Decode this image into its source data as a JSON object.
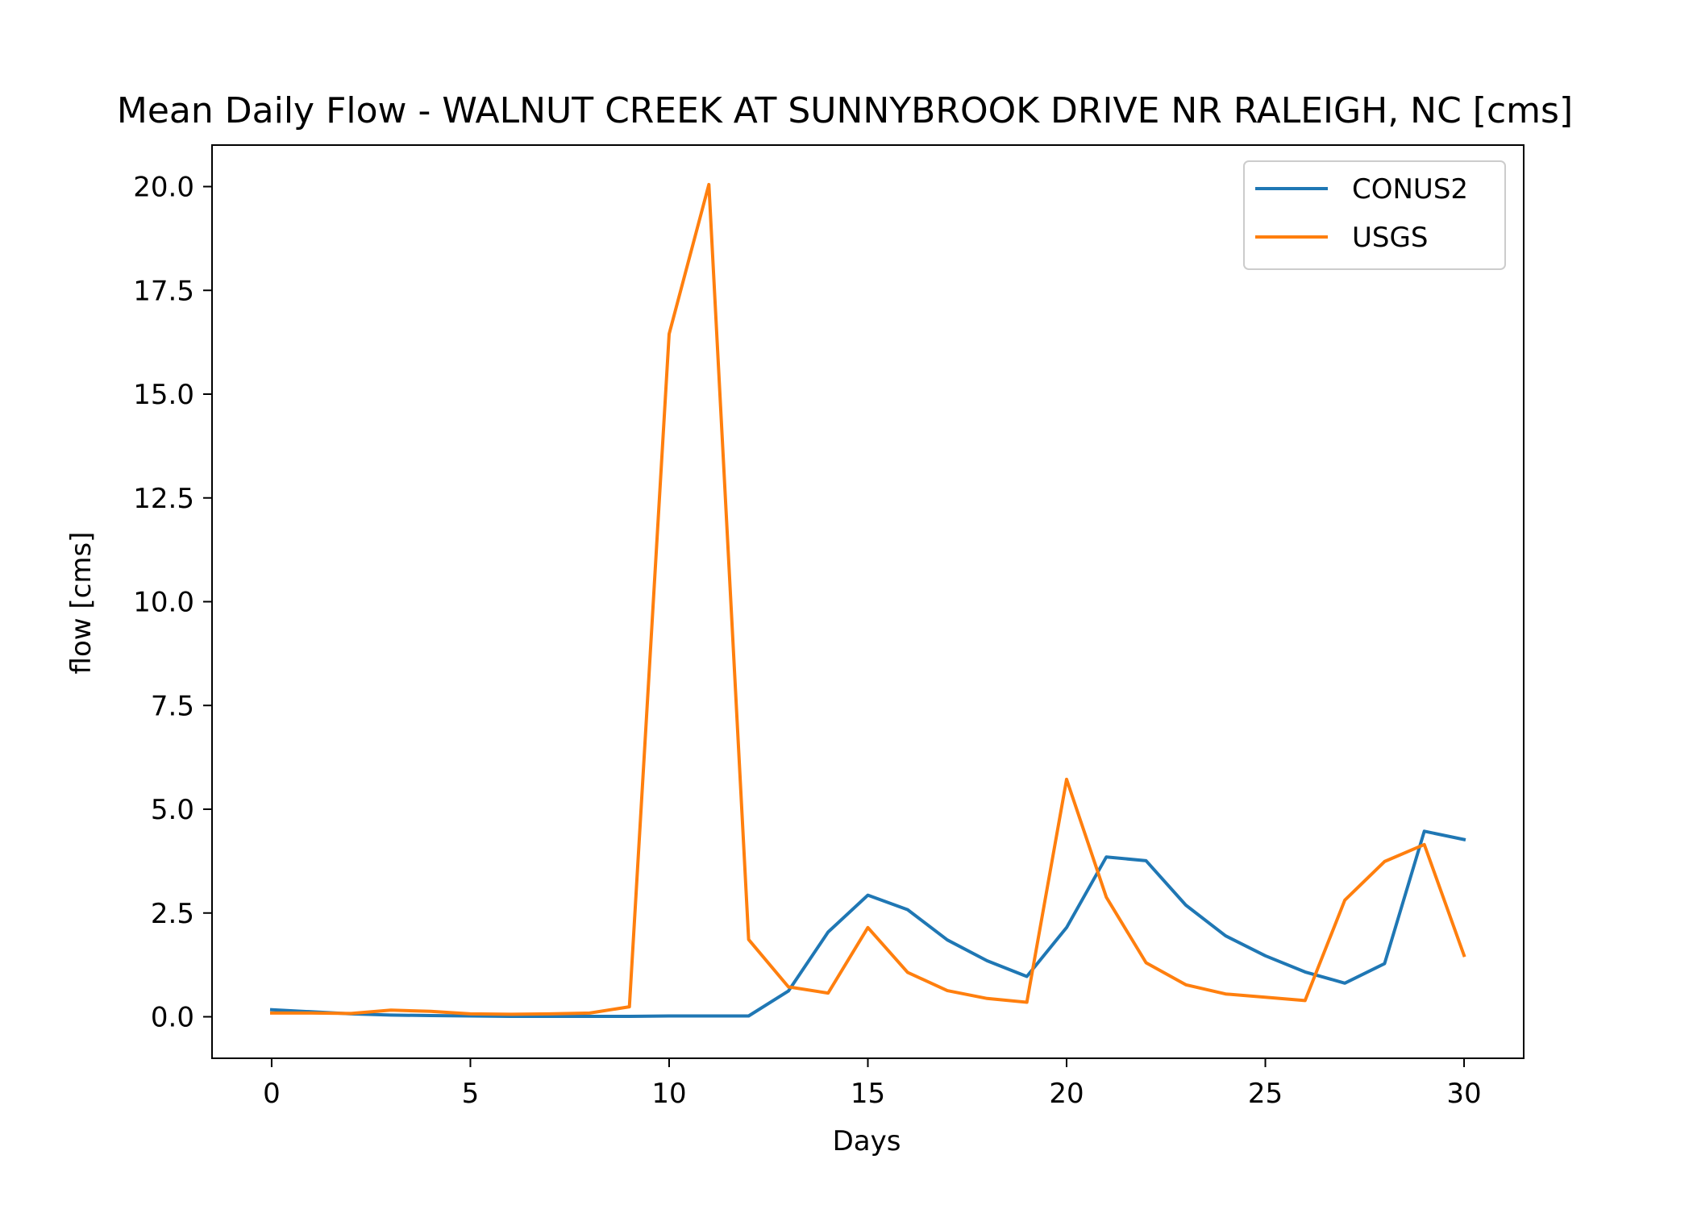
{
  "chart_data": {
    "type": "line",
    "title": "Mean Daily Flow - WALNUT CREEK AT SUNNYBROOK DRIVE NR RALEIGH, NC [cms]",
    "xlabel": "Days",
    "ylabel": "flow [cms]",
    "xlim": [
      -1.5,
      31.5
    ],
    "ylim": [
      -1.0,
      21.0
    ],
    "xticks": [
      0,
      5,
      10,
      15,
      20,
      25,
      30
    ],
    "xtick_labels": [
      "0",
      "5",
      "10",
      "15",
      "20",
      "25",
      "30"
    ],
    "yticks": [
      0.0,
      2.5,
      5.0,
      7.5,
      10.0,
      12.5,
      15.0,
      17.5,
      20.0
    ],
    "ytick_labels": [
      "0.0",
      "2.5",
      "5.0",
      "7.5",
      "10.0",
      "12.5",
      "15.0",
      "17.5",
      "20.0"
    ],
    "grid": false,
    "legend_position": "top-right",
    "x": [
      0,
      1,
      2,
      3,
      4,
      5,
      6,
      7,
      8,
      9,
      10,
      11,
      12,
      13,
      14,
      15,
      16,
      17,
      18,
      19,
      20,
      21,
      22,
      23,
      24,
      25,
      26,
      27,
      28,
      29,
      30
    ],
    "series": [
      {
        "name": "CONUS2",
        "color": "#1f77b4",
        "values": [
          0.17,
          0.12,
          0.07,
          0.04,
          0.03,
          0.02,
          0.01,
          0.01,
          0.01,
          0.01,
          0.02,
          0.02,
          0.02,
          0.62,
          2.04,
          2.93,
          2.58,
          1.85,
          1.35,
          0.97,
          2.15,
          3.85,
          3.76,
          2.69,
          1.95,
          1.47,
          1.08,
          0.81,
          1.28,
          4.47,
          4.27
        ]
      },
      {
        "name": "USGS",
        "color": "#ff7f0e",
        "values": [
          0.09,
          0.09,
          0.08,
          0.16,
          0.13,
          0.07,
          0.06,
          0.07,
          0.09,
          0.24,
          16.45,
          20.05,
          1.86,
          0.72,
          0.57,
          2.15,
          1.07,
          0.63,
          0.44,
          0.35,
          5.72,
          2.88,
          1.3,
          0.77,
          0.55,
          0.47,
          0.39,
          2.81,
          3.74,
          4.15,
          1.48
        ]
      }
    ]
  }
}
